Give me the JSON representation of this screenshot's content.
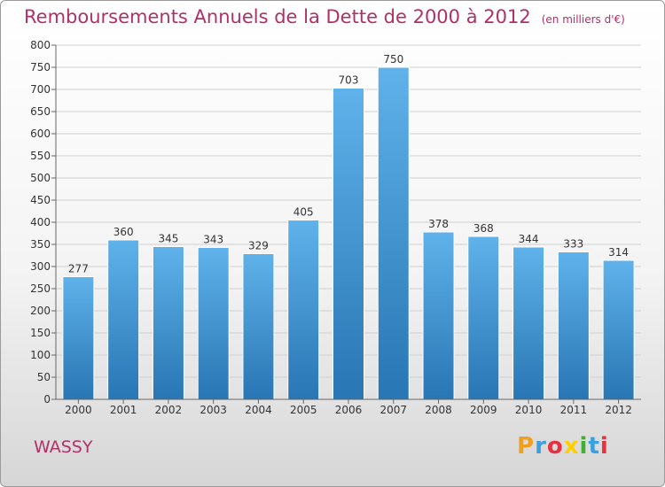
{
  "header": {
    "title": "Remboursements Annuels de la Dette de 2000 à 2012",
    "subtitle": "(en milliers d'€)"
  },
  "footer": {
    "place": "WASSY",
    "logo": {
      "text": "Proxiti",
      "colors": [
        "#f0a020",
        "#3aa0e0",
        "#e83040",
        "#ffd000",
        "#40b030",
        "#3aa0e0",
        "#e83040"
      ]
    }
  },
  "colors": {
    "bar_light": "#5fb2ea",
    "bar_dark": "#2876b4",
    "text_accent": "#b0306a",
    "grid": "#cfcfcf"
  },
  "chart_data": {
    "type": "bar",
    "title": "Remboursements Annuels de la Dette de 2000 à 2012",
    "subtitle": "(en milliers d'€)",
    "categories": [
      "2000",
      "2001",
      "2002",
      "2003",
      "2004",
      "2005",
      "2006",
      "2007",
      "2008",
      "2009",
      "2010",
      "2011",
      "2012"
    ],
    "values": [
      277,
      360,
      345,
      343,
      329,
      405,
      703,
      750,
      378,
      368,
      344,
      333,
      314
    ],
    "ylim": [
      0,
      800
    ],
    "yticks": [
      0,
      50,
      100,
      150,
      200,
      250,
      300,
      350,
      400,
      450,
      500,
      550,
      600,
      650,
      700,
      750,
      800
    ],
    "grid": true,
    "data_labels": true
  }
}
